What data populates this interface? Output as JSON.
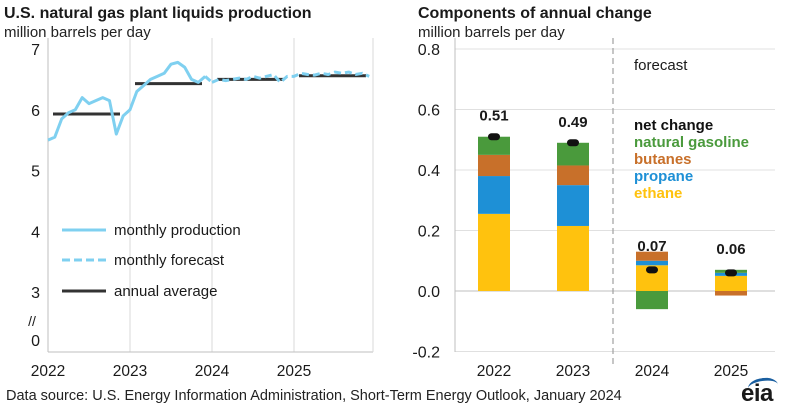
{
  "chart_data": [
    {
      "type": "line",
      "title": "U.S. natural gas plant liquids production",
      "ylabel": "million barrels per day",
      "ylim": [
        0,
        7
      ],
      "y_axis_break": true,
      "y_ticks": [
        "0",
        "3",
        "4",
        "5",
        "6",
        "7"
      ],
      "x_ticks": [
        "2022",
        "2023",
        "2024",
        "2025"
      ],
      "legend": [
        {
          "name": "monthly production",
          "style": "solid",
          "color": "#7fd0f0"
        },
        {
          "name": "monthly forecast",
          "style": "dashed",
          "color": "#7fd0f0"
        },
        {
          "name": "annual average",
          "style": "solid",
          "color": "#333333"
        }
      ],
      "series": [
        {
          "name": "monthly production",
          "x": [
            2022.0,
            2022.083,
            2022.167,
            2022.25,
            2022.333,
            2022.417,
            2022.5,
            2022.583,
            2022.667,
            2022.75,
            2022.833,
            2022.917,
            2023.0,
            2023.083,
            2023.167,
            2023.25,
            2023.333,
            2023.417,
            2023.5,
            2023.583,
            2023.667,
            2023.75,
            2023.833,
            2023.917
          ],
          "values": [
            5.5,
            5.55,
            5.85,
            5.95,
            6.0,
            6.2,
            6.1,
            6.15,
            6.2,
            6.15,
            5.6,
            5.9,
            6.0,
            6.3,
            6.4,
            6.5,
            6.55,
            6.6,
            6.75,
            6.78,
            6.7,
            6.5,
            6.45,
            6.55
          ]
        },
        {
          "name": "monthly forecast",
          "x": [
            2024.0,
            2024.083,
            2024.167,
            2024.25,
            2024.333,
            2024.417,
            2024.5,
            2024.583,
            2024.667,
            2024.75,
            2024.833,
            2024.917,
            2025.0,
            2025.083,
            2025.167,
            2025.25,
            2025.333,
            2025.417,
            2025.5,
            2025.583,
            2025.667,
            2025.75,
            2025.833,
            2025.917
          ],
          "values": [
            6.45,
            6.5,
            6.48,
            6.5,
            6.52,
            6.5,
            6.55,
            6.52,
            6.55,
            6.58,
            6.45,
            6.55,
            6.55,
            6.6,
            6.58,
            6.57,
            6.6,
            6.58,
            6.62,
            6.6,
            6.62,
            6.58,
            6.6,
            6.55
          ]
        }
      ],
      "annual_average": [
        {
          "year": 2022,
          "value": 5.93
        },
        {
          "year": 2023,
          "value": 6.43
        },
        {
          "year": 2024,
          "value": 6.5
        },
        {
          "year": 2025,
          "value": 6.56
        }
      ]
    },
    {
      "type": "bar",
      "stacked": true,
      "title": "Components of annual change",
      "ylabel": "million barrels per day",
      "ylim": [
        -0.2,
        0.8
      ],
      "y_ticks": [
        "0.8",
        "0.6",
        "0.4",
        "0.2",
        "0.0",
        "-0.2"
      ],
      "categories": [
        "2022",
        "2023",
        "2024",
        "2025"
      ],
      "forecast_label": "forecast",
      "forecast_start": "2024",
      "series": [
        {
          "name": "ethane",
          "color": "#ffc20e",
          "values": [
            0.255,
            0.215,
            0.085,
            0.05
          ]
        },
        {
          "name": "propane",
          "color": "#1e90d6",
          "values": [
            0.125,
            0.135,
            0.015,
            0.01
          ]
        },
        {
          "name": "butanes",
          "color": "#c8702a",
          "values": [
            0.07,
            0.065,
            0.03,
            -0.015
          ]
        },
        {
          "name": "natural gasoline",
          "color": "#4a9a3c",
          "values": [
            0.06,
            0.075,
            -0.06,
            0.01
          ]
        }
      ],
      "net_change": {
        "name": "net change",
        "color": "#111111",
        "values": [
          0.51,
          0.49,
          0.07,
          0.06
        ],
        "labels": [
          "0.51",
          "0.49",
          "0.07",
          "0.06"
        ]
      },
      "legend_order": [
        "net change",
        "natural gasoline",
        "butanes",
        "propane",
        "ethane"
      ]
    }
  ],
  "footer": {
    "source": "Data source: U.S. Energy Information Administration, Short-Term Energy Outlook, January 2024",
    "logo": "eia"
  }
}
